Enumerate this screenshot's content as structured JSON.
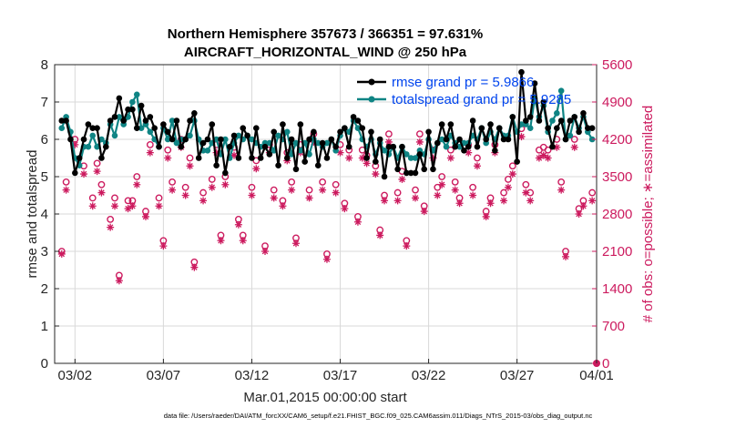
{
  "chart_data": {
    "type": "line",
    "title": "Northern Hemisphere 357673 / 366351 = 97.631%",
    "subtitle": "AIRCRAFT_HORIZONTAL_WIND @ 250 hPa",
    "xlabel": "Mar.01,2015 00:00:00 start",
    "ylabel": "rmse and totalspread",
    "y2label": "# of obs: o=possible; ∗=assimilated",
    "footnote": "data file: /Users/raeder/DAI/ATM_forcXX/CAM6_setup/f.e21.FHIST_BGC.f09_025.CAM6assim.011/Diags_NTrS_2015-03/obs_diag_output.nc",
    "xlim": [
      0.6,
      31.25
    ],
    "ylim": [
      0,
      8
    ],
    "y2lim": [
      0,
      5600
    ],
    "grid": true,
    "xticks": [
      1.75,
      6.75,
      11.75,
      16.75,
      21.75,
      26.75,
      31.75
    ],
    "xticklabels": [
      "03/02",
      "03/07",
      "03/12",
      "03/17",
      "03/22",
      "03/27",
      "04/01"
    ],
    "yticks": [
      0,
      1,
      2,
      3,
      4,
      5,
      6,
      7,
      8
    ],
    "y2ticks": [
      0,
      700,
      1400,
      2100,
      2800,
      3500,
      4200,
      4900,
      5600
    ],
    "legend": [
      "rmse grand pr = 5.9866",
      "totalspread grand pr = 5.9285"
    ],
    "colors": {
      "rmse": "#000000",
      "spread": "#0f8484",
      "obs": "#cc1a5e",
      "legend_text": "#0044ee"
    },
    "x": [
      1.0,
      1.25,
      1.5,
      1.75,
      2.0,
      2.25,
      2.5,
      2.75,
      3.0,
      3.25,
      3.5,
      3.75,
      4.0,
      4.25,
      4.5,
      4.75,
      5.0,
      5.25,
      5.5,
      5.75,
      6.0,
      6.25,
      6.5,
      6.75,
      7.0,
      7.25,
      7.5,
      7.75,
      8.0,
      8.25,
      8.5,
      8.75,
      9.0,
      9.25,
      9.5,
      9.75,
      10.0,
      10.25,
      10.5,
      10.75,
      11.0,
      11.25,
      11.5,
      11.75,
      12.0,
      12.25,
      12.5,
      12.75,
      13.0,
      13.25,
      13.5,
      13.75,
      14.0,
      14.25,
      14.5,
      14.75,
      15.0,
      15.25,
      15.5,
      15.75,
      16.0,
      16.25,
      16.5,
      16.75,
      17.0,
      17.25,
      17.5,
      17.75,
      18.0,
      18.25,
      18.5,
      18.75,
      19.0,
      19.25,
      19.5,
      19.75,
      20.0,
      20.25,
      20.5,
      20.75,
      21.0,
      21.25,
      21.5,
      21.75,
      22.0,
      22.25,
      22.5,
      22.75,
      23.0,
      23.25,
      23.5,
      23.75,
      24.0,
      24.25,
      24.5,
      24.75,
      25.0,
      25.25,
      25.5,
      25.75,
      26.0,
      26.25,
      26.5,
      26.75,
      27.0,
      27.25,
      27.5,
      27.75,
      28.0,
      28.25,
      28.5,
      28.75,
      29.0,
      29.25,
      29.5,
      29.75,
      30.0,
      30.25,
      30.5,
      30.75,
      31.0
    ],
    "series": [
      {
        "name": "rmse",
        "values": [
          6.5,
          6.5,
          6.0,
          5.1,
          5.5,
          6.0,
          6.4,
          6.3,
          6.3,
          5.5,
          5.8,
          6.5,
          6.6,
          7.1,
          6.5,
          6.8,
          6.8,
          6.3,
          6.9,
          6.5,
          6.6,
          6.3,
          5.8,
          6.4,
          6.2,
          6.0,
          6.5,
          5.8,
          6.0,
          6.5,
          6.7,
          5.5,
          5.9,
          6.0,
          6.4,
          5.3,
          6.0,
          5.1,
          5.8,
          6.1,
          5.5,
          6.3,
          6.1,
          5.5,
          6.3,
          5.5,
          5.8,
          5.6,
          6.2,
          5.3,
          6.4,
          5.5,
          6.0,
          5.2,
          6.4,
          5.4,
          6.0,
          6.2,
          5.3,
          5.9,
          5.5,
          6.0,
          5.8,
          6.2,
          6.3,
          5.8,
          6.6,
          6.5,
          6.3,
          5.5,
          6.2,
          5.4,
          6.0,
          5.0,
          5.8,
          5.8,
          5.2,
          5.8,
          5.1,
          5.1,
          5.1,
          5.6,
          5.2,
          6.2,
          5.2,
          5.9,
          6.4,
          6.0,
          6.4,
          5.8,
          6.0,
          5.7,
          5.8,
          6.5,
          5.8,
          6.3,
          6.0,
          6.4,
          5.7,
          6.3,
          6.0,
          6.0,
          6.6,
          5.4,
          7.8,
          6.5,
          6.6,
          7.5,
          6.5,
          7.0,
          6.3,
          5.8,
          6.3,
          6.5,
          6.0,
          6.5,
          6.6,
          6.2,
          6.7,
          6.3,
          6.3
        ]
      },
      {
        "name": "totalspread",
        "values": [
          6.3,
          6.6,
          6.2,
          5.5,
          5.3,
          5.8,
          5.8,
          6.1,
          5.8,
          6.0,
          5.9,
          6.4,
          6.1,
          6.6,
          6.4,
          6.6,
          7.0,
          7.2,
          6.3,
          6.4,
          6.2,
          6.0,
          5.8,
          6.3,
          6.0,
          6.5,
          5.9,
          6.0,
          6.0,
          6.1,
          6.5,
          6.0,
          5.7,
          5.7,
          5.9,
          6.0,
          5.6,
          6.0,
          5.5,
          5.9,
          6.1,
          6.0,
          6.1,
          6.0,
          5.9,
          5.8,
          5.9,
          5.9,
          5.7,
          6.1,
          6.0,
          6.2,
          5.6,
          5.9,
          5.7,
          5.9,
          5.6,
          6.0,
          5.9,
          5.8,
          5.9,
          6.0,
          5.7,
          6.1,
          6.3,
          6.2,
          6.5,
          6.3,
          6.0,
          5.8,
          6.0,
          5.6,
          5.9,
          5.7,
          5.6,
          5.8,
          5.5,
          5.8,
          5.6,
          5.5,
          5.5,
          5.7,
          5.6,
          6.0,
          5.7,
          5.9,
          6.0,
          5.8,
          6.1,
          5.9,
          5.8,
          5.9,
          5.9,
          6.1,
          6.0,
          6.3,
          5.9,
          6.2,
          6.0,
          6.3,
          6.1,
          6.1,
          6.6,
          6.2,
          6.4,
          6.4,
          6.3,
          7.1,
          6.6,
          6.9,
          6.2,
          6.5,
          6.7,
          7.3,
          6.0,
          6.1,
          6.6,
          6.3,
          6.6,
          6.2,
          6.0
        ]
      }
    ],
    "obs_possible": {
      "x": [
        1.0,
        1.25,
        1.75,
        2.25,
        2.75,
        3.0,
        3.25,
        3.75,
        4.0,
        4.25,
        4.75,
        5.0,
        5.25,
        5.75,
        6.0,
        6.5,
        6.75,
        7.0,
        7.25,
        7.75,
        8.0,
        8.25,
        8.5,
        9.0,
        9.5,
        9.75,
        10.0,
        10.25,
        10.75,
        11.0,
        11.25,
        11.75,
        12.0,
        12.5,
        12.75,
        13.0,
        13.5,
        13.75,
        14.0,
        14.25,
        14.5,
        15.0,
        15.25,
        15.75,
        16.0,
        16.5,
        16.75,
        17.0,
        17.25,
        17.75,
        18.0,
        18.25,
        18.75,
        19.0,
        19.25,
        19.5,
        20.0,
        20.25,
        20.5,
        21.0,
        21.25,
        21.5,
        22.0,
        22.25,
        22.5,
        23.0,
        23.25,
        23.5,
        24.0,
        24.25,
        24.5,
        25.0,
        25.25,
        25.5,
        26.0,
        26.25,
        26.5,
        27.0,
        27.25,
        27.5,
        28.0,
        28.25,
        28.5,
        29.0,
        29.25,
        29.5,
        30.0,
        30.25,
        30.5,
        31.0
      ],
      "values": [
        2100,
        3400,
        4200,
        3700,
        3100,
        3750,
        3350,
        2700,
        3100,
        1650,
        3050,
        3050,
        3500,
        2850,
        4100,
        3100,
        2300,
        4000,
        3400,
        4200,
        3300,
        3850,
        1900,
        3200,
        3450,
        4100,
        2400,
        3500,
        4050,
        2700,
        2400,
        3300,
        3800,
        2200,
        4100,
        3250,
        3050,
        3950,
        3400,
        2350,
        4100,
        3250,
        4300,
        3400,
        2050,
        3350,
        4100,
        3000,
        4000,
        2750,
        4000,
        3900,
        3700,
        2500,
        3150,
        4300,
        3200,
        3600,
        2300,
        3250,
        4300,
        2950,
        4000,
        3300,
        3500,
        4000,
        3400,
        3100,
        4100,
        3300,
        3850,
        2850,
        3100,
        4100,
        3200,
        3450,
        3700,
        4400,
        3350,
        3200,
        4000,
        4050,
        4000,
        4200,
        3400,
        2100,
        4200,
        2900,
        3050,
        3200
      ]
    },
    "obs_assimilated": {
      "x": [
        1.0,
        1.25,
        1.75,
        2.25,
        2.75,
        3.0,
        3.25,
        3.75,
        4.0,
        4.25,
        4.75,
        5.0,
        5.25,
        5.75,
        6.0,
        6.5,
        6.75,
        7.0,
        7.25,
        7.75,
        8.0,
        8.25,
        8.5,
        9.0,
        9.5,
        9.75,
        10.0,
        10.25,
        10.75,
        11.0,
        11.25,
        11.75,
        12.0,
        12.5,
        12.75,
        13.0,
        13.5,
        13.75,
        14.0,
        14.25,
        14.5,
        15.0,
        15.25,
        15.75,
        16.0,
        16.5,
        16.75,
        17.0,
        17.25,
        17.75,
        18.0,
        18.25,
        18.75,
        19.0,
        19.25,
        19.5,
        20.0,
        20.25,
        20.5,
        21.0,
        21.25,
        21.5,
        22.0,
        22.25,
        22.5,
        23.0,
        23.25,
        23.5,
        24.0,
        24.25,
        24.5,
        25.0,
        25.25,
        25.5,
        26.0,
        26.25,
        26.5,
        27.0,
        27.25,
        27.5,
        28.0,
        28.25,
        28.5,
        29.0,
        29.25,
        29.5,
        30.0,
        30.25,
        30.5,
        31.0
      ],
      "values": [
        2050,
        3250,
        4100,
        3550,
        2950,
        3600,
        3200,
        2550,
        2950,
        1550,
        2900,
        2950,
        3350,
        2750,
        3950,
        2950,
        2200,
        3850,
        3250,
        4050,
        3150,
        3700,
        1800,
        3050,
        3300,
        3950,
        2300,
        3350,
        3900,
        2600,
        2300,
        3150,
        3650,
        2100,
        3950,
        3100,
        2950,
        3800,
        3250,
        2250,
        3950,
        3100,
        4150,
        3250,
        1950,
        3200,
        3950,
        2900,
        3850,
        2650,
        3850,
        3750,
        3550,
        2400,
        3050,
        4150,
        3050,
        3450,
        2200,
        3100,
        4150,
        2850,
        3850,
        3150,
        3350,
        3850,
        3250,
        3000,
        3950,
        3150,
        3700,
        2750,
        3000,
        3950,
        3050,
        3300,
        3550,
        4250,
        3200,
        3050,
        3850,
        3900,
        3850,
        4050,
        3250,
        2000,
        4050,
        2800,
        2950,
        3050
      ]
    }
  }
}
